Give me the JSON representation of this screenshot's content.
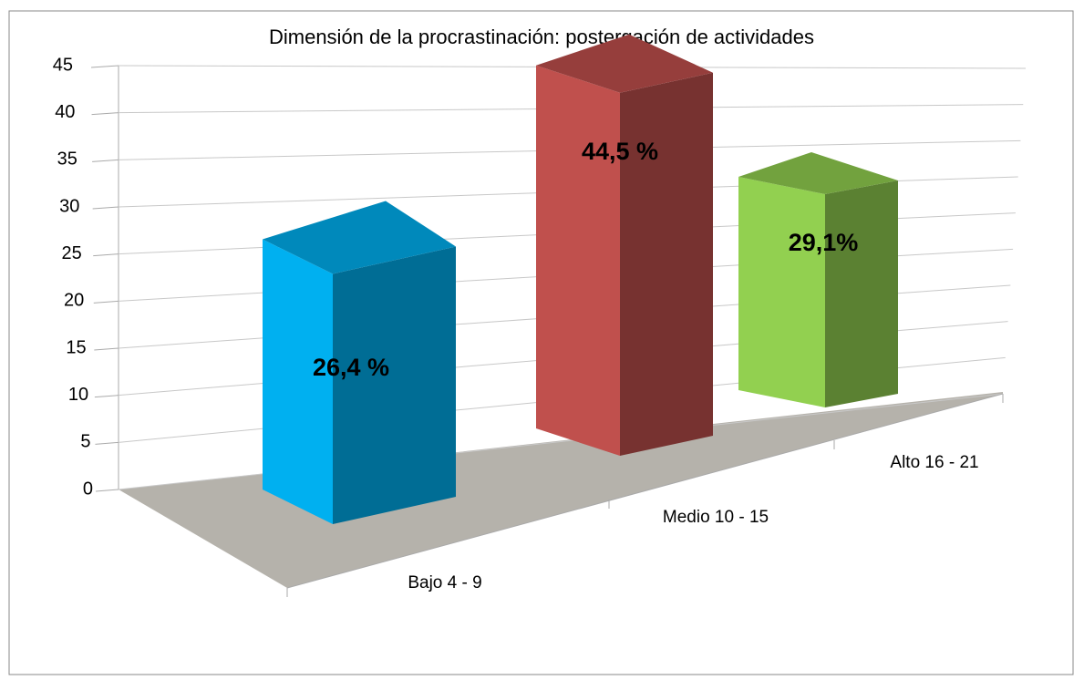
{
  "chart_data": {
    "type": "bar3d",
    "title": "Dimensión de la procrastinación: postergación de actividades",
    "categories": [
      "Bajo 4 - 9",
      "Medio 10 - 15",
      "Alto 16 - 21"
    ],
    "values": [
      26.4,
      44.5,
      29.1
    ],
    "value_labels": [
      "26,4 %",
      "44,5 %",
      "29,1%"
    ],
    "value_label_colors": [
      "#000000",
      "#ffff00",
      "#000000"
    ],
    "colors": [
      "#00b0f0",
      "#c0504d",
      "#92d050"
    ],
    "ylim": [
      0,
      45
    ],
    "yticks": [
      0,
      5,
      10,
      15,
      20,
      25,
      30,
      35,
      40,
      45
    ],
    "grid": true
  }
}
